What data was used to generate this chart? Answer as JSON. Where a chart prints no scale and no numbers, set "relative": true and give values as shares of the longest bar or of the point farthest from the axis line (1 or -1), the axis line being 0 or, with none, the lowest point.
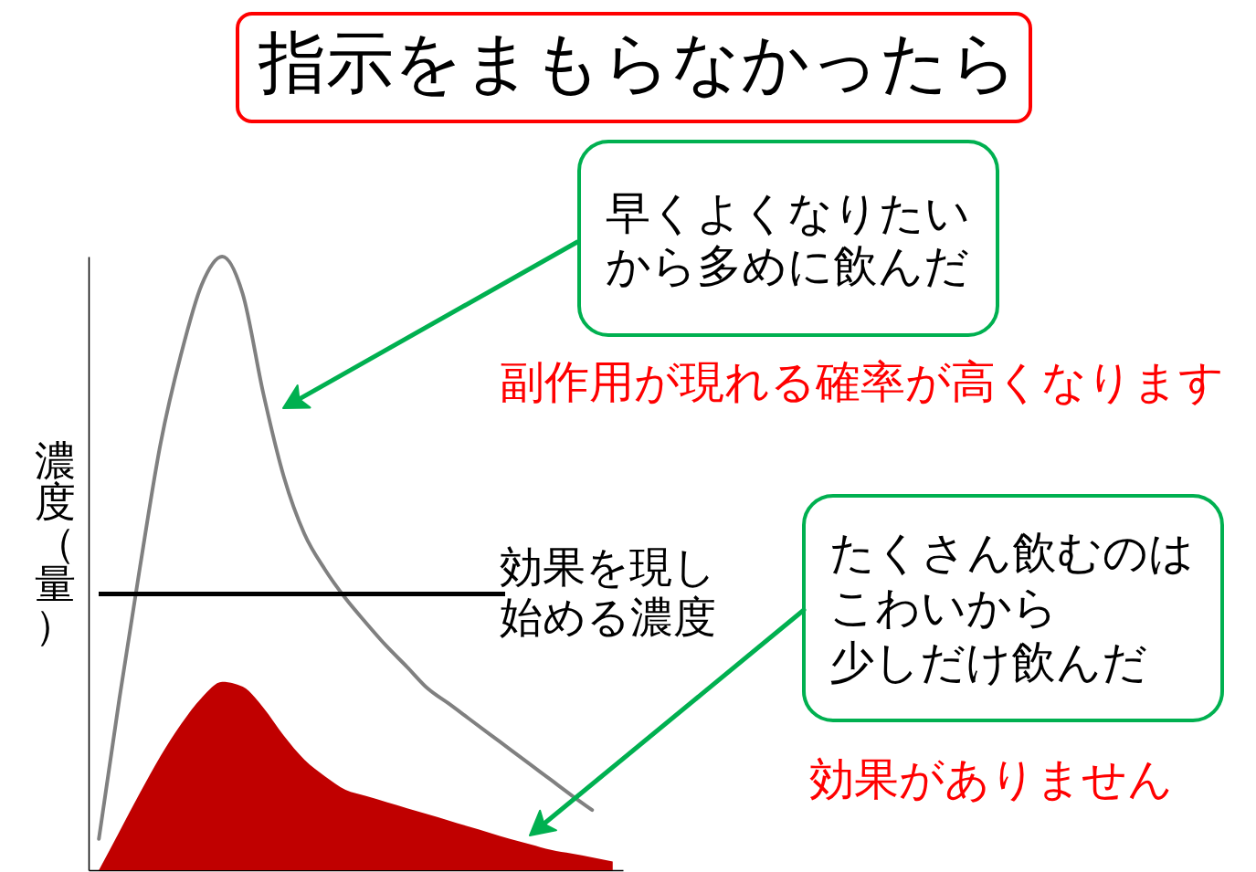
{
  "chart_data": {
    "type": "line",
    "title": "指示をまもらなかったら",
    "ylabel": "濃度（量）",
    "relative": true,
    "categories": [
      null,
      null,
      null,
      null,
      null,
      null,
      null,
      null,
      null,
      null,
      null,
      null,
      null,
      null,
      null,
      null,
      null,
      null,
      null,
      null,
      null,
      null,
      null,
      null,
      null,
      null
    ],
    "series": [
      {
        "color": "#808080",
        "values": [
          0.051,
          0.28,
          0.494,
          0.695,
          0.841,
          0.954,
          1,
          0.939,
          0.777,
          0.641,
          0.548,
          0.49,
          0.443,
          0.403,
          0.365,
          0.331,
          0.296,
          0.272,
          0.247,
          0.222,
          0.197,
          0.172,
          0.147,
          0.122,
          0.098,
          null
        ]
      },
      {
        "type": "area",
        "color": "#c00000",
        "values": [
          0,
          0.063,
          0.126,
          0.186,
          0.238,
          0.281,
          0.307,
          0.299,
          0.265,
          0.219,
          0.18,
          0.153,
          0.131,
          0.121,
          0.111,
          0.101,
          0.091,
          0.081,
          0.071,
          0.061,
          0.051,
          0.042,
          0.033,
          0.027,
          0.021,
          0.014
        ]
      }
    ],
    "ref_lines": [
      {
        "axis": "y",
        "value": 0.45,
        "label": "効果を現し始める濃度",
        "color": "#000000"
      }
    ],
    "annotations": [
      "早くよくなりたいから多めに飲んだ",
      "副作用が現れる確率が高くなります",
      "たくさん飲むのはこわいから少しだけ飲んだ",
      "効果がありません"
    ]
  }
}
